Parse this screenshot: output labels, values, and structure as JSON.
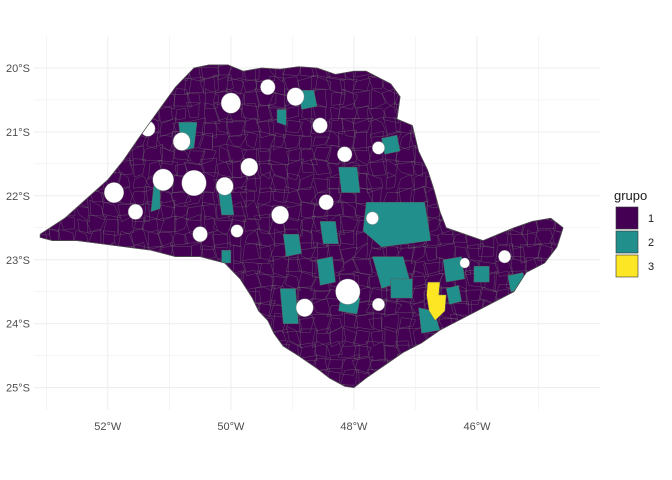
{
  "chart_data": {
    "type": "choropleth",
    "xlim": [
      -53.2,
      -44.0
    ],
    "ylim": [
      -25.35,
      -19.5
    ],
    "grid": true,
    "legend_placement": "right",
    "x_ticks": [
      {
        "value": -52,
        "label": "52°W"
      },
      {
        "value": -50,
        "label": "50°W"
      },
      {
        "value": -48,
        "label": "48°W"
      },
      {
        "value": -46,
        "label": "46°W"
      }
    ],
    "y_ticks": [
      {
        "value": -20,
        "label": "20°S"
      },
      {
        "value": -21,
        "label": "21°S"
      },
      {
        "value": -22,
        "label": "22°S"
      },
      {
        "value": -23,
        "label": "23°S"
      },
      {
        "value": -24,
        "label": "24°S"
      },
      {
        "value": -25,
        "label": "25°S"
      }
    ],
    "legend": {
      "title": "grupo",
      "entries": [
        {
          "label": "1",
          "color": "#440154"
        },
        {
          "label": "2",
          "color": "#21908C"
        },
        {
          "label": "3",
          "color": "#FDE725"
        }
      ]
    },
    "state_outline": [
      [
        -53.1,
        -22.6
      ],
      [
        -52.7,
        -22.35
      ],
      [
        -52.35,
        -22.05
      ],
      [
        -52.0,
        -21.75
      ],
      [
        -51.75,
        -21.45
      ],
      [
        -51.5,
        -21.1
      ],
      [
        -51.2,
        -20.7
      ],
      [
        -50.9,
        -20.3
      ],
      [
        -50.6,
        -20.0
      ],
      [
        -50.35,
        -19.95
      ],
      [
        -50.05,
        -19.95
      ],
      [
        -49.8,
        -20.05
      ],
      [
        -49.5,
        -20.0
      ],
      [
        -49.2,
        -20.02
      ],
      [
        -48.9,
        -19.98
      ],
      [
        -48.6,
        -20.0
      ],
      [
        -48.3,
        -20.1
      ],
      [
        -48.0,
        -20.05
      ],
      [
        -47.8,
        -20.05
      ],
      [
        -47.6,
        -20.15
      ],
      [
        -47.4,
        -20.25
      ],
      [
        -47.25,
        -20.45
      ],
      [
        -47.3,
        -20.8
      ],
      [
        -47.05,
        -20.9
      ],
      [
        -46.95,
        -21.3
      ],
      [
        -46.8,
        -21.6
      ],
      [
        -46.7,
        -21.9
      ],
      [
        -46.6,
        -22.25
      ],
      [
        -46.5,
        -22.5
      ],
      [
        -46.2,
        -22.6
      ],
      [
        -45.9,
        -22.7
      ],
      [
        -45.65,
        -22.6
      ],
      [
        -45.4,
        -22.5
      ],
      [
        -45.1,
        -22.4
      ],
      [
        -44.8,
        -22.35
      ],
      [
        -44.6,
        -22.5
      ],
      [
        -44.7,
        -22.8
      ],
      [
        -44.9,
        -23.05
      ],
      [
        -45.2,
        -23.2
      ],
      [
        -45.4,
        -23.5
      ],
      [
        -45.7,
        -23.65
      ],
      [
        -46.0,
        -23.8
      ],
      [
        -46.3,
        -23.95
      ],
      [
        -46.6,
        -24.1
      ],
      [
        -46.9,
        -24.3
      ],
      [
        -47.2,
        -24.45
      ],
      [
        -47.5,
        -24.65
      ],
      [
        -47.8,
        -24.85
      ],
      [
        -48.0,
        -25.0
      ],
      [
        -48.15,
        -24.98
      ],
      [
        -48.4,
        -24.85
      ],
      [
        -48.6,
        -24.7
      ],
      [
        -48.9,
        -24.5
      ],
      [
        -49.15,
        -24.35
      ],
      [
        -49.3,
        -24.15
      ],
      [
        -49.4,
        -23.95
      ],
      [
        -49.55,
        -23.8
      ],
      [
        -49.65,
        -23.6
      ],
      [
        -49.85,
        -23.3
      ],
      [
        -50.1,
        -23.05
      ],
      [
        -50.5,
        -22.95
      ],
      [
        -50.9,
        -22.95
      ],
      [
        -51.3,
        -22.85
      ],
      [
        -51.7,
        -22.8
      ],
      [
        -52.1,
        -22.75
      ],
      [
        -52.5,
        -22.7
      ],
      [
        -52.9,
        -22.7
      ],
      [
        -53.1,
        -22.65
      ]
    ],
    "holes": [
      {
        "lon": -51.9,
        "lat": -21.95,
        "r": 0.16
      },
      {
        "lon": -51.1,
        "lat": -21.75,
        "r": 0.17
      },
      {
        "lon": -50.6,
        "lat": -21.8,
        "r": 0.2
      },
      {
        "lon": -50.1,
        "lat": -21.85,
        "r": 0.14
      },
      {
        "lon": -49.7,
        "lat": -21.55,
        "r": 0.14
      },
      {
        "lon": -50.8,
        "lat": -21.15,
        "r": 0.14
      },
      {
        "lon": -51.35,
        "lat": -20.95,
        "r": 0.12
      },
      {
        "lon": -50.0,
        "lat": -20.55,
        "r": 0.16
      },
      {
        "lon": -49.4,
        "lat": -20.3,
        "r": 0.12
      },
      {
        "lon": -48.95,
        "lat": -20.45,
        "r": 0.14
      },
      {
        "lon": -48.55,
        "lat": -20.9,
        "r": 0.12
      },
      {
        "lon": -48.15,
        "lat": -21.35,
        "r": 0.12
      },
      {
        "lon": -47.6,
        "lat": -21.25,
        "r": 0.1
      },
      {
        "lon": -49.2,
        "lat": -22.3,
        "r": 0.14
      },
      {
        "lon": -48.45,
        "lat": -22.1,
        "r": 0.12
      },
      {
        "lon": -47.7,
        "lat": -22.35,
        "r": 0.1
      },
      {
        "lon": -50.5,
        "lat": -22.6,
        "r": 0.12
      },
      {
        "lon": -49.9,
        "lat": -22.55,
        "r": 0.1
      },
      {
        "lon": -51.55,
        "lat": -22.25,
        "r": 0.12
      },
      {
        "lon": -48.1,
        "lat": -23.5,
        "r": 0.2
      },
      {
        "lon": -48.8,
        "lat": -23.75,
        "r": 0.14
      },
      {
        "lon": -47.6,
        "lat": -23.7,
        "r": 0.1
      },
      {
        "lon": -45.55,
        "lat": -22.95,
        "r": 0.1
      },
      {
        "lon": -46.2,
        "lat": -23.05,
        "r": 0.08
      }
    ],
    "regions": [
      {
        "grupo": "2",
        "points": [
          [
            -48.9,
            -20.35
          ],
          [
            -48.65,
            -20.35
          ],
          [
            -48.6,
            -20.6
          ],
          [
            -48.85,
            -20.65
          ]
        ]
      },
      {
        "grupo": "2",
        "points": [
          [
            -49.25,
            -20.65
          ],
          [
            -49.1,
            -20.65
          ],
          [
            -49.1,
            -20.9
          ],
          [
            -49.25,
            -20.85
          ]
        ]
      },
      {
        "grupo": "2",
        "points": [
          [
            -50.85,
            -20.85
          ],
          [
            -50.55,
            -20.85
          ],
          [
            -50.6,
            -21.25
          ],
          [
            -50.8,
            -21.3
          ]
        ]
      },
      {
        "grupo": "2",
        "points": [
          [
            -47.55,
            -21.1
          ],
          [
            -47.3,
            -21.05
          ],
          [
            -47.25,
            -21.3
          ],
          [
            -47.5,
            -21.35
          ]
        ]
      },
      {
        "grupo": "2",
        "points": [
          [
            -48.25,
            -21.55
          ],
          [
            -47.95,
            -21.55
          ],
          [
            -47.9,
            -21.95
          ],
          [
            -48.2,
            -21.95
          ]
        ]
      },
      {
        "grupo": "2",
        "points": [
          [
            -51.25,
            -21.8
          ],
          [
            -51.15,
            -21.8
          ],
          [
            -51.15,
            -22.2
          ],
          [
            -51.3,
            -22.25
          ]
        ]
      },
      {
        "grupo": "2",
        "points": [
          [
            -50.2,
            -21.95
          ],
          [
            -50.0,
            -21.95
          ],
          [
            -49.95,
            -22.3
          ],
          [
            -50.15,
            -22.3
          ]
        ]
      },
      {
        "grupo": "2",
        "points": [
          [
            -47.8,
            -22.1
          ],
          [
            -46.85,
            -22.1
          ],
          [
            -46.75,
            -22.7
          ],
          [
            -47.55,
            -22.8
          ],
          [
            -47.85,
            -22.55
          ]
        ]
      },
      {
        "grupo": "2",
        "points": [
          [
            -48.55,
            -22.4
          ],
          [
            -48.3,
            -22.4
          ],
          [
            -48.25,
            -22.75
          ],
          [
            -48.5,
            -22.75
          ]
        ]
      },
      {
        "grupo": "2",
        "points": [
          [
            -49.15,
            -22.6
          ],
          [
            -48.9,
            -22.6
          ],
          [
            -48.85,
            -22.9
          ],
          [
            -49.1,
            -22.95
          ]
        ]
      },
      {
        "grupo": "2",
        "points": [
          [
            -50.15,
            -22.85
          ],
          [
            -50.0,
            -22.85
          ],
          [
            -50.0,
            -23.05
          ],
          [
            -50.15,
            -23.05
          ]
        ]
      },
      {
        "grupo": "2",
        "points": [
          [
            -48.6,
            -23.0
          ],
          [
            -48.35,
            -22.95
          ],
          [
            -48.3,
            -23.35
          ],
          [
            -48.55,
            -23.4
          ]
        ]
      },
      {
        "grupo": "2",
        "points": [
          [
            -47.7,
            -22.95
          ],
          [
            -47.2,
            -22.95
          ],
          [
            -47.1,
            -23.3
          ],
          [
            -47.55,
            -23.45
          ]
        ]
      },
      {
        "grupo": "2",
        "points": [
          [
            -49.2,
            -23.45
          ],
          [
            -48.95,
            -23.45
          ],
          [
            -48.9,
            -24.0
          ],
          [
            -49.15,
            -24.0
          ]
        ]
      },
      {
        "grupo": "2",
        "points": [
          [
            -48.2,
            -23.5
          ],
          [
            -47.9,
            -23.6
          ],
          [
            -47.95,
            -23.85
          ],
          [
            -48.25,
            -23.8
          ]
        ]
      },
      {
        "grupo": "2",
        "points": [
          [
            -47.4,
            -23.3
          ],
          [
            -47.05,
            -23.3
          ],
          [
            -47.05,
            -23.6
          ],
          [
            -47.4,
            -23.6
          ]
        ]
      },
      {
        "grupo": "2",
        "points": [
          [
            -46.55,
            -23.0
          ],
          [
            -46.25,
            -22.95
          ],
          [
            -46.2,
            -23.3
          ],
          [
            -46.5,
            -23.35
          ]
        ]
      },
      {
        "grupo": "2",
        "points": [
          [
            -46.05,
            -23.1
          ],
          [
            -45.8,
            -23.1
          ],
          [
            -45.8,
            -23.35
          ],
          [
            -46.05,
            -23.35
          ]
        ]
      },
      {
        "grupo": "2",
        "points": [
          [
            -45.5,
            -23.25
          ],
          [
            -45.25,
            -23.2
          ],
          [
            -45.2,
            -23.45
          ],
          [
            -45.45,
            -23.5
          ]
        ]
      },
      {
        "grupo": "2",
        "points": [
          [
            -46.5,
            -23.45
          ],
          [
            -46.3,
            -23.4
          ],
          [
            -46.25,
            -23.65
          ],
          [
            -46.45,
            -23.7
          ]
        ]
      },
      {
        "grupo": "2",
        "points": [
          [
            -46.95,
            -23.75
          ],
          [
            -46.7,
            -23.8
          ],
          [
            -46.6,
            -24.1
          ],
          [
            -46.9,
            -24.15
          ]
        ]
      },
      {
        "grupo": "2",
        "points": [
          [
            -45.1,
            -23.45
          ],
          [
            -44.9,
            -23.35
          ],
          [
            -44.85,
            -23.55
          ],
          [
            -45.0,
            -23.6
          ]
        ]
      },
      {
        "grupo": "3",
        "points": [
          [
            -46.8,
            -23.35
          ],
          [
            -46.6,
            -23.35
          ],
          [
            -46.62,
            -23.55
          ],
          [
            -46.5,
            -23.55
          ],
          [
            -46.52,
            -23.8
          ],
          [
            -46.68,
            -23.95
          ],
          [
            -46.78,
            -23.8
          ],
          [
            -46.82,
            -23.55
          ]
        ]
      }
    ]
  }
}
